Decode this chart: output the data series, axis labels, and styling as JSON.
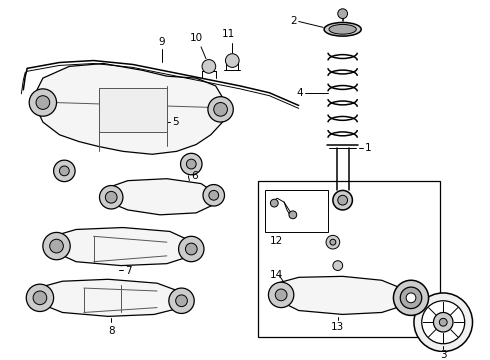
{
  "bg_color": "#ffffff",
  "fig_width": 4.9,
  "fig_height": 3.6,
  "dpi": 100,
  "lw": 0.8
}
